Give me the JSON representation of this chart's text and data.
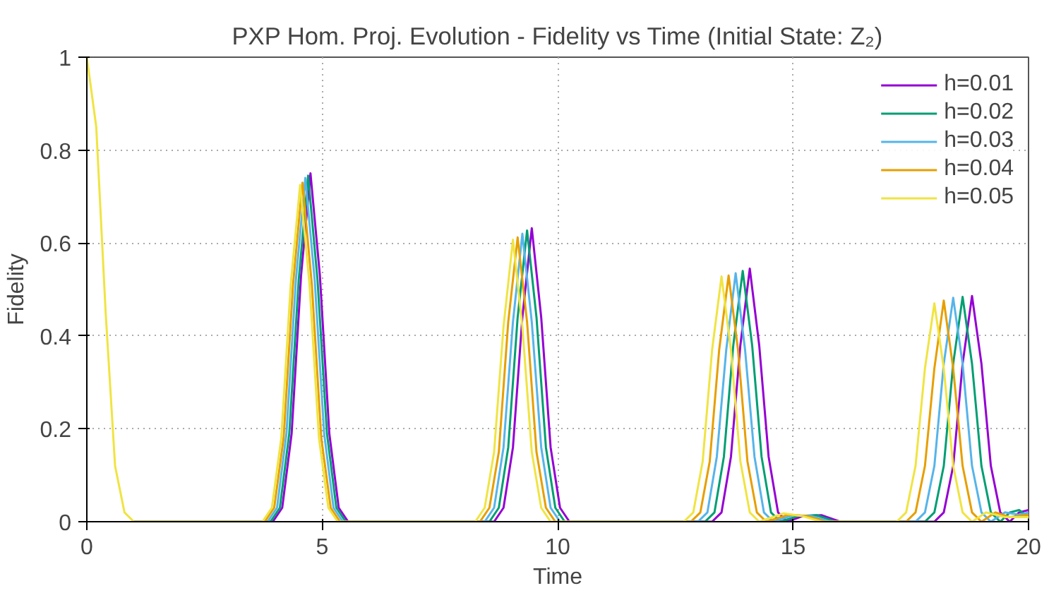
{
  "chart_data": {
    "type": "line",
    "title": "PXP Hom. Proj. Evolution - Fidelity vs Time (Initial State: Z₂)",
    "xlabel": "Time",
    "ylabel": "Fidelity",
    "xlim": [
      0,
      20
    ],
    "ylim": [
      0,
      1
    ],
    "xticks": [
      0,
      5,
      10,
      15,
      20
    ],
    "yticks": [
      0,
      0.2,
      0.4,
      0.6,
      0.8,
      1
    ],
    "grid": true,
    "legend": "top right",
    "line_style": "solid",
    "marker": "none",
    "series": [
      {
        "name": "h=0.01",
        "color": "#9400d3",
        "x": [
          1.0,
          3.95,
          4.15,
          4.35,
          4.55,
          4.75,
          4.95,
          5.15,
          5.35,
          5.55,
          8.65,
          8.85,
          9.05,
          9.25,
          9.45,
          9.65,
          9.85,
          10.05,
          10.25,
          13.28,
          13.48,
          13.68,
          13.88,
          14.08,
          14.28,
          14.48,
          14.68,
          14.88,
          15.2,
          15.6,
          16.0,
          18.0,
          18.2,
          18.4,
          18.6,
          18.8,
          19.0,
          19.2,
          19.4,
          19.6,
          19.8,
          20
        ],
        "values": [
          0,
          0,
          0.03,
          0.19,
          0.53,
          0.75,
          0.53,
          0.19,
          0.03,
          0,
          0,
          0.03,
          0.16,
          0.44,
          0.632,
          0.44,
          0.16,
          0.03,
          0,
          0,
          0.02,
          0.14,
          0.38,
          0.545,
          0.38,
          0.14,
          0.02,
          0,
          0.012,
          0.014,
          0,
          0,
          0.02,
          0.12,
          0.34,
          0.486,
          0.34,
          0.12,
          0.02,
          0,
          0.02,
          0.025
        ]
      },
      {
        "name": "h=0.02",
        "color": "#009e73",
        "x": [
          1.0,
          3.9,
          4.1,
          4.3,
          4.5,
          4.7,
          4.9,
          5.1,
          5.3,
          5.5,
          8.55,
          8.75,
          8.95,
          9.15,
          9.35,
          9.55,
          9.75,
          9.95,
          10.15,
          13.13,
          13.33,
          13.53,
          13.73,
          13.93,
          14.13,
          14.33,
          14.53,
          14.73,
          15.1,
          15.5,
          15.9,
          17.8,
          18.0,
          18.2,
          18.4,
          18.6,
          18.8,
          19.0,
          19.2,
          19.4,
          19.6,
          19.8,
          20
        ],
        "values": [
          0,
          0,
          0.03,
          0.19,
          0.52,
          0.745,
          0.52,
          0.19,
          0.03,
          0,
          0,
          0.03,
          0.16,
          0.44,
          0.627,
          0.44,
          0.16,
          0.03,
          0,
          0,
          0.02,
          0.14,
          0.38,
          0.54,
          0.38,
          0.14,
          0.02,
          0,
          0.012,
          0.014,
          0,
          0,
          0.02,
          0.12,
          0.34,
          0.484,
          0.34,
          0.12,
          0.02,
          0,
          0.02,
          0.025,
          0.01
        ]
      },
      {
        "name": "h=0.03",
        "color": "#56b4e9",
        "x": [
          1.0,
          3.84,
          4.04,
          4.24,
          4.44,
          4.64,
          4.84,
          5.04,
          5.24,
          5.44,
          8.45,
          8.65,
          8.85,
          9.05,
          9.25,
          9.45,
          9.65,
          9.85,
          10.05,
          12.98,
          13.18,
          13.38,
          13.58,
          13.78,
          13.98,
          14.18,
          14.38,
          14.58,
          15.0,
          15.4,
          15.8,
          17.6,
          17.8,
          18.0,
          18.2,
          18.4,
          18.6,
          18.8,
          19.0,
          19.2,
          19.5,
          19.8,
          20
        ],
        "values": [
          0,
          0,
          0.03,
          0.19,
          0.52,
          0.74,
          0.52,
          0.19,
          0.03,
          0,
          0,
          0.03,
          0.16,
          0.43,
          0.62,
          0.43,
          0.16,
          0.03,
          0,
          0,
          0.02,
          0.14,
          0.37,
          0.535,
          0.37,
          0.14,
          0.02,
          0,
          0.014,
          0.012,
          0,
          0,
          0.02,
          0.12,
          0.34,
          0.482,
          0.34,
          0.12,
          0.02,
          0,
          0.02,
          0.015,
          0.02
        ]
      },
      {
        "name": "h=0.04",
        "color": "#e69f00",
        "x": [
          1.0,
          3.78,
          3.98,
          4.18,
          4.38,
          4.58,
          4.78,
          4.98,
          5.18,
          5.38,
          8.35,
          8.55,
          8.75,
          8.95,
          9.15,
          9.35,
          9.55,
          9.75,
          9.95,
          12.83,
          13.03,
          13.23,
          13.43,
          13.63,
          13.83,
          14.03,
          14.23,
          14.43,
          14.9,
          15.3,
          15.7,
          17.4,
          17.6,
          17.8,
          18.0,
          18.2,
          18.4,
          18.6,
          18.8,
          19.0,
          19.3,
          19.6,
          20
        ],
        "values": [
          0,
          0,
          0.03,
          0.18,
          0.51,
          0.73,
          0.51,
          0.18,
          0.03,
          0,
          0,
          0.03,
          0.15,
          0.43,
          0.612,
          0.43,
          0.15,
          0.03,
          0,
          0,
          0.02,
          0.13,
          0.37,
          0.53,
          0.37,
          0.13,
          0.02,
          0,
          0.015,
          0.012,
          0,
          0,
          0.02,
          0.12,
          0.33,
          0.476,
          0.33,
          0.12,
          0.02,
          0,
          0.02,
          0.01,
          0.015
        ]
      },
      {
        "name": "h=0.05",
        "color": "#f0e442",
        "x": [
          0,
          0.2,
          0.4,
          0.6,
          0.8,
          1.0,
          3.73,
          3.93,
          4.13,
          4.33,
          4.53,
          4.73,
          4.93,
          5.13,
          5.33,
          8.25,
          8.45,
          8.65,
          8.85,
          9.05,
          9.25,
          9.45,
          9.65,
          9.85,
          12.68,
          12.88,
          13.08,
          13.28,
          13.48,
          13.68,
          13.88,
          14.08,
          14.28,
          14.8,
          15.2,
          15.6,
          17.2,
          17.4,
          17.6,
          17.8,
          18.0,
          18.2,
          18.4,
          18.6,
          18.8,
          19.1,
          19.5,
          20
        ],
        "values": [
          1,
          0.85,
          0.45,
          0.12,
          0.02,
          0,
          0,
          0.03,
          0.18,
          0.51,
          0.725,
          0.51,
          0.18,
          0.03,
          0,
          0,
          0.03,
          0.15,
          0.42,
          0.607,
          0.42,
          0.15,
          0.03,
          0,
          0,
          0.02,
          0.13,
          0.37,
          0.528,
          0.37,
          0.13,
          0.02,
          0,
          0.018,
          0.012,
          0,
          0,
          0.02,
          0.12,
          0.33,
          0.47,
          0.33,
          0.12,
          0.02,
          0,
          0.02,
          0.01,
          0.01
        ]
      }
    ]
  }
}
